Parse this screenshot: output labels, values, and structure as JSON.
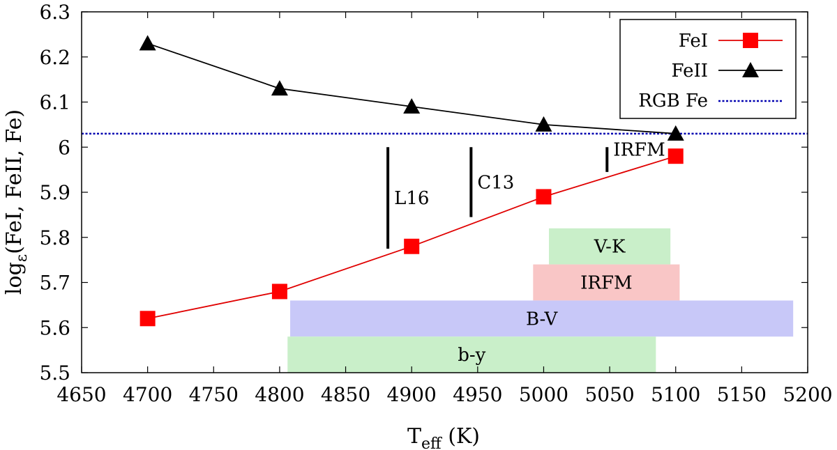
{
  "chart_data": {
    "type": "line",
    "xlabel_main": "T",
    "xlabel_sub": "eff",
    "xlabel_unit": " (K)",
    "ylabel_main": "log",
    "ylabel_sub": "ε",
    "ylabel_rest": "(FeI, FeII, Fe)",
    "xlim": [
      4650,
      5200
    ],
    "ylim": [
      5.5,
      6.3
    ],
    "xticks": [
      4650,
      4700,
      4750,
      4800,
      4850,
      4900,
      4950,
      5000,
      5050,
      5100,
      5150,
      5200
    ],
    "yticks": [
      "5.5",
      "5.6",
      "5.7",
      "5.8",
      "5.9",
      "6",
      "6.1",
      "6.2",
      "6.3"
    ],
    "series": [
      {
        "name": "FeI",
        "color": "#e00000",
        "marker": "square",
        "x": [
          4700,
          4800,
          4900,
          5000,
          5100
        ],
        "y": [
          5.62,
          5.68,
          5.78,
          5.89,
          5.98
        ]
      },
      {
        "name": "FeII",
        "color": "#000000",
        "marker": "triangle",
        "x": [
          4700,
          4800,
          4900,
          5000,
          5100
        ],
        "y": [
          6.23,
          6.13,
          6.09,
          6.05,
          6.03
        ]
      }
    ],
    "reference_line": {
      "name": "RGB Fe",
      "y": 6.03,
      "color": "#0000b0",
      "style": "dotted"
    },
    "temperature_markers": [
      {
        "label": "L16",
        "x": 4882,
        "y_low": 5.775,
        "y_high": 6.0
      },
      {
        "label": "C13",
        "x": 4945,
        "y_low": 5.845,
        "y_high": 6.0
      },
      {
        "label": "IRFM",
        "x": 5048,
        "y_low": 5.945,
        "y_high": 6.0
      }
    ],
    "ranges": [
      {
        "label": "V-K",
        "x_min": 5004,
        "x_max": 5096,
        "y_min": 5.74,
        "y_max": 5.82,
        "color": "#c9efc9"
      },
      {
        "label": "IRFM",
        "x_min": 4992,
        "x_max": 5103,
        "y_min": 5.66,
        "y_max": 5.74,
        "color": "#f9c6c6"
      },
      {
        "label": "B-V",
        "x_min": 4808,
        "x_max": 5189,
        "y_min": 5.58,
        "y_max": 5.66,
        "color": "#c8c8f8"
      },
      {
        "label": "b-y",
        "x_min": 4806,
        "x_max": 5085,
        "y_min": 5.5,
        "y_max": 5.58,
        "color": "#c9efc9"
      }
    ],
    "legend_position": "top-right"
  }
}
